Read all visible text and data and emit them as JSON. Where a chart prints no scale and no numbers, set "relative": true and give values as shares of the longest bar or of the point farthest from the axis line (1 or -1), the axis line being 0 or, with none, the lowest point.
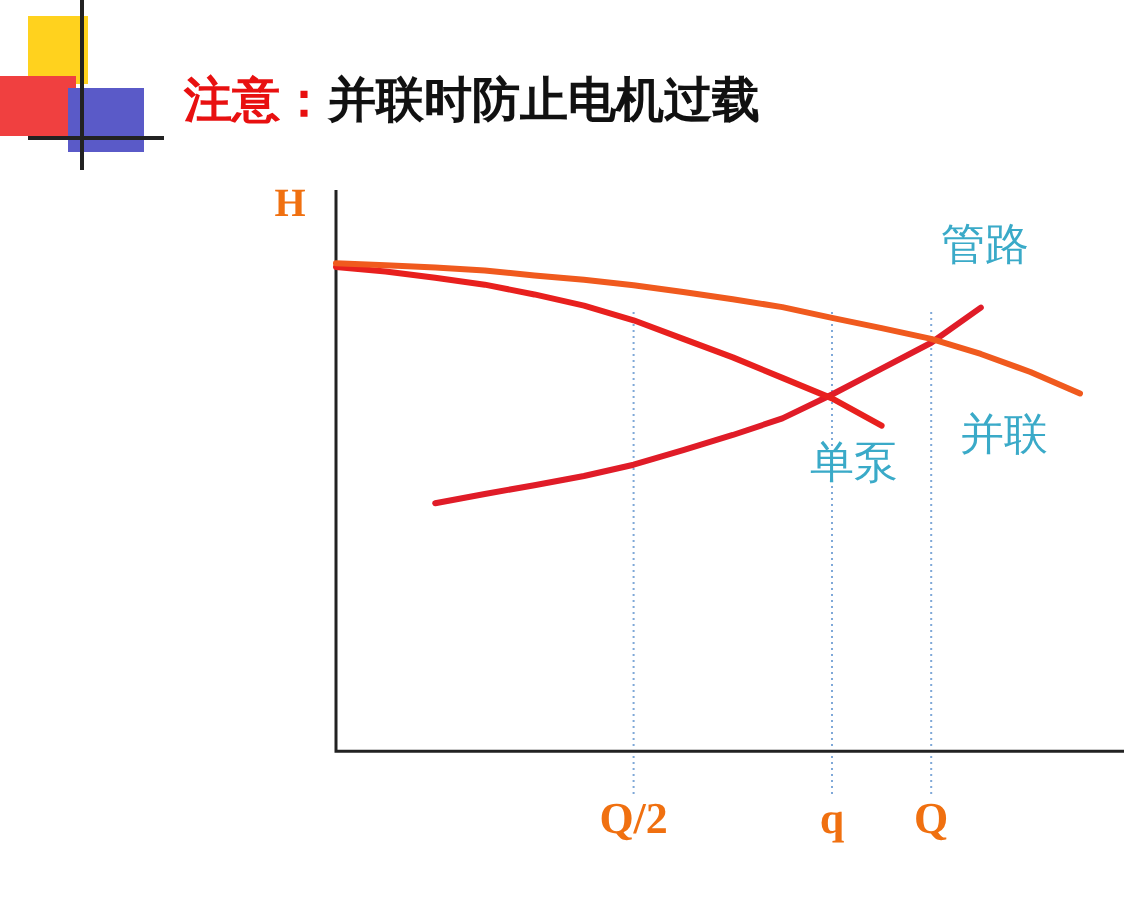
{
  "chart_data": {
    "type": "line",
    "title": "注意：并联时防止电机过载",
    "ylabel": "H",
    "relative": true,
    "tick_labels": "x",
    "legend": false,
    "marker": "none",
    "line_style": "solid",
    "categories": [
      null,
      null,
      null,
      null,
      null,
      null,
      "Q/2",
      null,
      null,
      null,
      "q",
      null,
      "Q",
      null,
      null,
      null
    ],
    "series": [
      {
        "name": "并联",
        "color": "#f05a1e",
        "values": [
          1.0,
          0.996,
          0.991,
          0.985,
          0.975,
          0.966,
          0.955,
          0.941,
          0.926,
          0.91,
          0.888,
          0.867,
          0.845,
          0.814,
          0.777,
          0.733
        ]
      },
      {
        "name": "单泵",
        "color": "#e8201e",
        "values": [
          0.992,
          0.983,
          0.97,
          0.956,
          0.936,
          0.913,
          0.883,
          0.845,
          0.807,
          0.765,
          0.723,
          0.667,
          null,
          null,
          null,
          null
        ]
      },
      {
        "name": "管路",
        "color": "#e01c28",
        "values": [
          null,
          null,
          0.508,
          0.527,
          0.545,
          0.564,
          0.587,
          0.617,
          0.648,
          0.682,
          0.731,
          0.784,
          0.837,
          0.909,
          null,
          null
        ]
      }
    ],
    "ref_lines": [
      {
        "axis": "x",
        "value": "Q/2",
        "color": "#7fa8d8",
        "line_style": "dotted"
      },
      {
        "axis": "x",
        "value": "q",
        "color": "#7fa8d8",
        "line_style": "dotted"
      },
      {
        "axis": "x",
        "value": "Q",
        "color": "#7fa8d8",
        "line_style": "dotted"
      }
    ]
  }
}
